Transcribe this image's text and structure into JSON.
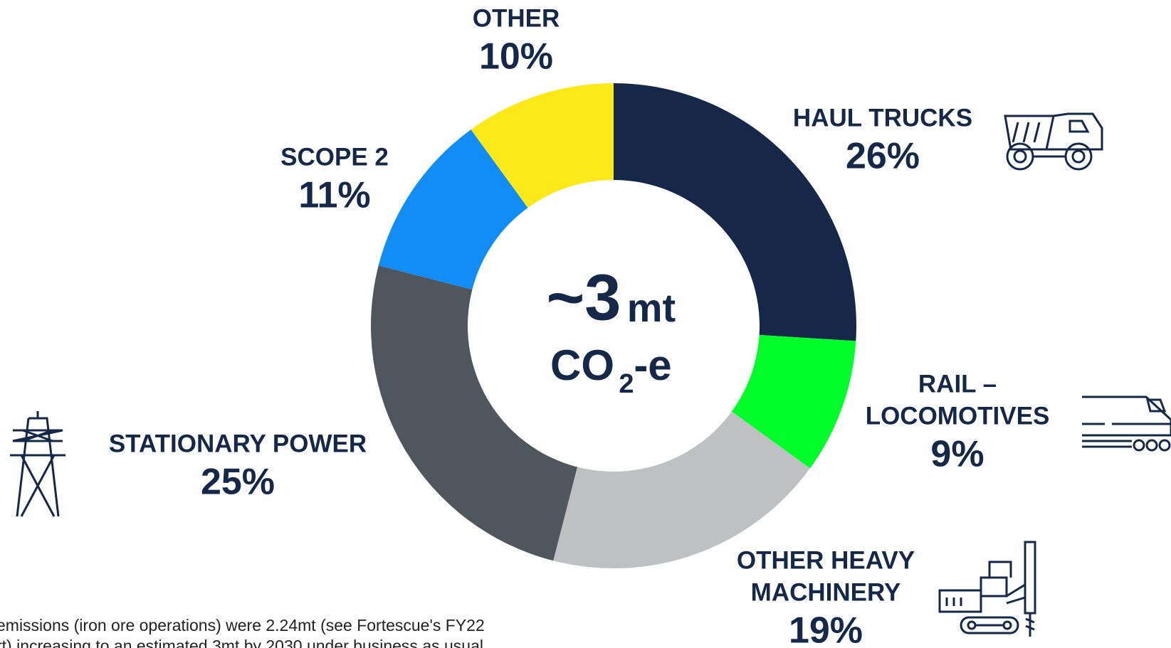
{
  "chart_data": {
    "type": "donut",
    "categories": [
      [
        "HAUL TRUCKS"
      ],
      [
        "RAIL –",
        "LOCOMOTIVES"
      ],
      [
        "OTHER HEAVY",
        "MACHINERY"
      ],
      [
        "STATIONARY POWER"
      ],
      [
        "SCOPE 2"
      ],
      [
        "OTHER"
      ]
    ],
    "values": [
      26,
      9,
      19,
      25,
      11,
      10
    ],
    "value_labels": [
      "26%",
      "9%",
      "19%",
      "25%",
      "11%",
      "10%"
    ],
    "colors": [
      "#15284a",
      "#00ff2a",
      "#bfc0c2",
      "#50565e",
      "#118df5",
      "#fce91a"
    ],
    "center_label": {
      "main": "~3",
      "unit": "mt",
      "formula": "CO",
      "subscript": "2",
      "suffix": "-e"
    },
    "footnote": [
      "emissions (iron ore operations) were 2.24mt (see Fortescue's FY22",
      "rt) increasing to an estimated 3mt by 2030 under business as usual"
    ]
  }
}
